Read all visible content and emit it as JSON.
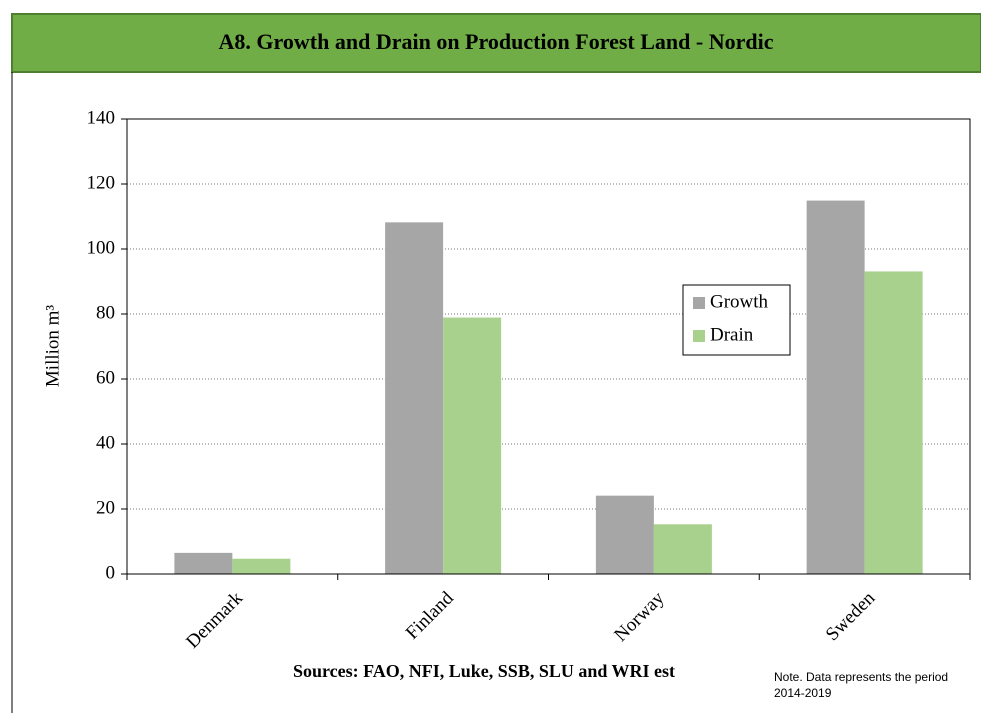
{
  "chart_data": {
    "type": "bar",
    "title": "A8. Growth and Drain on Production Forest Land - Nordic",
    "y_label": "Million m³",
    "categories": [
      "Denmark",
      "Finland",
      "Norway",
      "Sweden"
    ],
    "series": [
      {
        "name": "Growth",
        "color": "#a6a6a6",
        "values": [
          6.5,
          108.2,
          24.1,
          114.9
        ]
      },
      {
        "name": "Drain",
        "color": "#a9d18e",
        "values": [
          4.7,
          78.9,
          15.3,
          93.1
        ]
      }
    ],
    "ylim": [
      0,
      140
    ],
    "yticks": [
      0,
      20,
      40,
      60,
      80,
      100,
      120,
      140
    ],
    "grid": true,
    "legend": "right",
    "source": "Sources: FAO, NFI, Luke, SSB, SLU and WRI est",
    "note": "Note. Data represents the period 2014-2019"
  }
}
